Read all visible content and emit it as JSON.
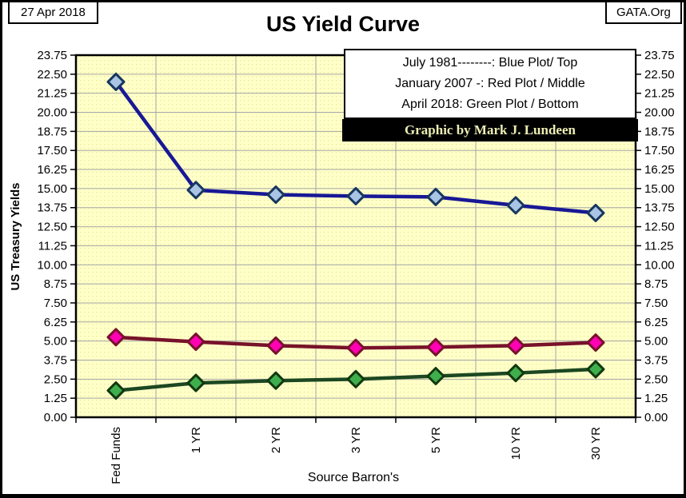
{
  "header": {
    "date": "27 Apr 2018",
    "site": "GATA.Org",
    "title": "US Yield Curve"
  },
  "legend": {
    "lines": [
      "July 1981--------:  Blue Plot/ Top",
      "January 2007 -: Red Plot / Middle",
      "April 2018: Green Plot / Bottom"
    ],
    "credit": "Graphic by Mark J. Lundeen"
  },
  "chart_data": {
    "type": "line",
    "title": "US Yield Curve",
    "ylabel": "US Treasury Yields",
    "source_label": "Source Barron's",
    "categories": [
      "Fed Funds",
      "1 YR",
      "2 YR",
      "3 YR",
      "5 YR",
      "10 YR",
      "30 YR"
    ],
    "series": [
      {
        "name": "July 1981",
        "position": "Top",
        "line_color": "#181896",
        "marker_fill": "#A9C4E4",
        "marker_edge": "#17375E",
        "values": [
          22.0,
          14.9,
          14.6,
          14.5,
          14.45,
          13.9,
          13.4
        ]
      },
      {
        "name": "January 2007",
        "position": "Middle",
        "line_color": "#77122A",
        "marker_fill": "#FF00B4",
        "marker_edge": "#77122A",
        "values": [
          5.25,
          4.95,
          4.7,
          4.55,
          4.6,
          4.7,
          4.9
        ]
      },
      {
        "name": "April 2018",
        "position": "Bottom",
        "line_color": "#1C4722",
        "marker_fill": "#3FAE4C",
        "marker_edge": "#12380F",
        "values": [
          1.75,
          2.25,
          2.4,
          2.5,
          2.7,
          2.9,
          3.15
        ]
      }
    ],
    "ylim": [
      0,
      23.75
    ],
    "ytick_step": 1.25,
    "grid": true,
    "legend_position": "top-right",
    "plot_bg": "#FFFFC8",
    "plot_bg_dot": "#E9E99E",
    "grid_color": "#A6A6A6",
    "frame_color": "#000000"
  }
}
